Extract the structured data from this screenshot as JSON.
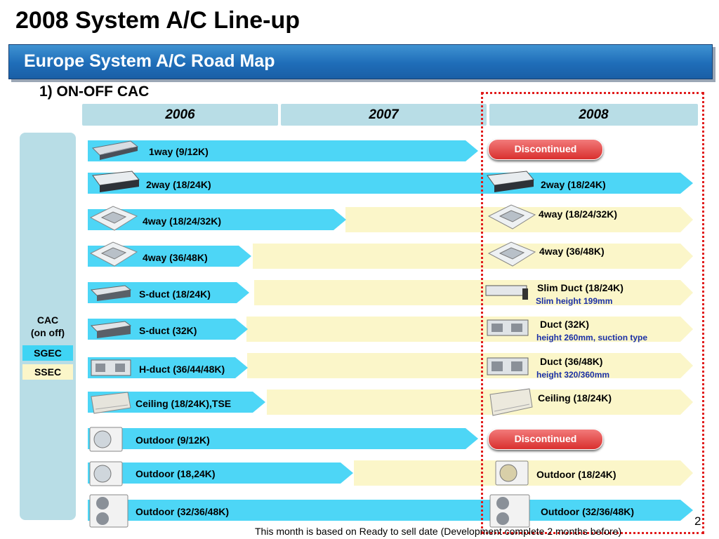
{
  "title": "2008 System A/C Line-up",
  "subtitle": "Europe System A/C Road Map",
  "section": "1) ON-OFF CAC",
  "years": [
    "2006",
    "2007",
    "2008"
  ],
  "side": {
    "cac_line1": "CAC",
    "cac_line2": "(on off)",
    "sgec": "SGEC",
    "ssec": "SSEC"
  },
  "rows": [
    {
      "left": "1way (9/12K)",
      "badge": "Discontinued"
    },
    {
      "left": "2way (18/24K)",
      "right": "2way (18/24K)"
    },
    {
      "left": "4way (18/24/32K)",
      "right": "4way (18/24/32K)"
    },
    {
      "left": "4way (36/48K)",
      "right": "4way (36/48K)"
    },
    {
      "left": "S-duct (18/24K)",
      "right": "Slim Duct (18/24K)",
      "note": "Slim height 199mm"
    },
    {
      "left": "S-duct (32K)",
      "right": "Duct (32K)",
      "note": "height 260mm, suction type"
    },
    {
      "left": "H-duct (36/44/48K)",
      "right": "Duct (36/48K)",
      "note": "height 320/360mm"
    },
    {
      "left": "Ceiling (18/24K),TSE",
      "right": "Ceiling (18/24K)"
    },
    {
      "left": "Outdoor (9/12K)",
      "badge": "Discontinued"
    },
    {
      "left": "Outdoor (18,24K)",
      "right": "Outdoor (18/24K)"
    },
    {
      "left": "Outdoor (32/36/48K)",
      "right": "Outdoor (32/36/48K)"
    }
  ],
  "footer": "This month is based on Ready to sell date (Development complete 2 months before)",
  "page_number": "2",
  "colors": {
    "blue_bar": "#4dd6f6",
    "yellow_bar": "#fbf6c9",
    "banner": "#1f6db8",
    "highlight": "#e11d1d",
    "badge": "#d9302e"
  },
  "icons": [
    "cassette-1way-icon",
    "cassette-2way-icon",
    "cassette-4way-icon",
    "duct-slim-icon",
    "duct-icon",
    "ceiling-unit-icon",
    "outdoor-unit-icon",
    "outdoor-double-fan-icon"
  ]
}
